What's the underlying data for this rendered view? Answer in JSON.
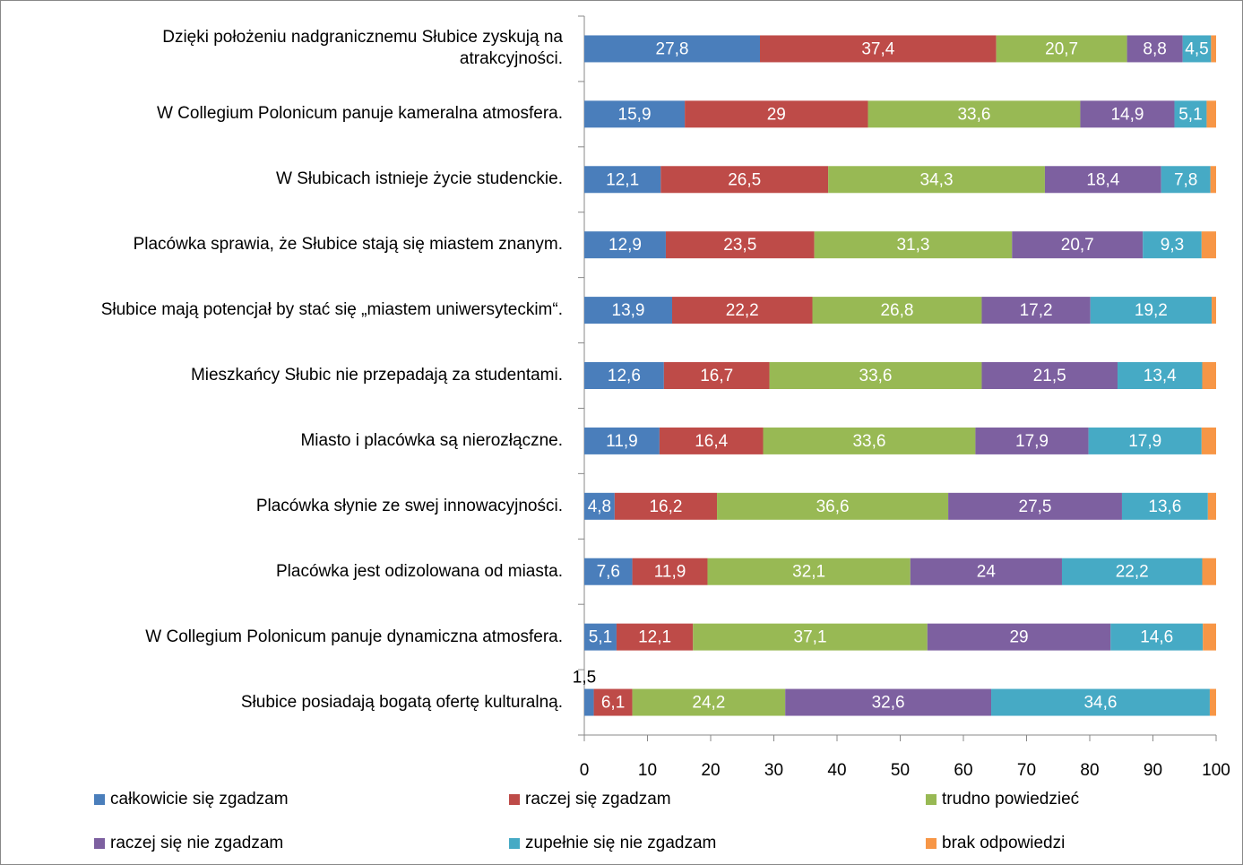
{
  "chart_data": {
    "type": "stacked_barh",
    "categories": [
      "Dzięki położeniu nadgranicznemu Słubice zyskują na atrakcyjności.",
      "W Collegium Polonicum panuje kameralna atmosfera.",
      "W Słubicach istnieje życie studenckie.",
      "Placówka sprawia, że Słubice stają się miastem znanym.",
      "Słubice mają potencjał by stać się „miastem uniwersyteckim“.",
      "Mieszkańcy Słubic nie przepadają za studentami.",
      "Miasto i placówka są nierozłączne.",
      "Placówka słynie ze swej innowacyjności.",
      "Placówka jest odizolowana od miasta.",
      "W Collegium Polonicum panuje dynamiczna atmosfera.",
      "Słubice posiadają bogatą ofertę kulturalną."
    ],
    "series": [
      {
        "name": "całkowicie się zgadzam",
        "color": "#4a7ebb",
        "values": [
          27.8,
          15.9,
          12.1,
          12.9,
          13.9,
          12.6,
          11.9,
          4.8,
          7.6,
          5.1,
          1.5
        ],
        "value_labels": [
          "27,8",
          "15,9",
          "12,1",
          "12,9",
          "13,9",
          "12,6",
          "11,9",
          "4,8",
          "7,6",
          "5,1",
          "1,5"
        ]
      },
      {
        "name": "raczej się zgadzam",
        "color": "#be4b48",
        "values": [
          37.4,
          29,
          26.5,
          23.5,
          22.2,
          16.7,
          16.4,
          16.2,
          11.9,
          12.1,
          6.1
        ],
        "value_labels": [
          "37,4",
          "29",
          "26,5",
          "23,5",
          "22,2",
          "16,7",
          "16,4",
          "16,2",
          "11,9",
          "12,1",
          "6,1"
        ]
      },
      {
        "name": "trudno powiedzieć",
        "color": "#98b954",
        "values": [
          20.7,
          33.6,
          34.3,
          31.3,
          26.8,
          33.6,
          33.6,
          36.6,
          32.1,
          37.1,
          24.2
        ],
        "value_labels": [
          "20,7",
          "33,6",
          "34,3",
          "31,3",
          "26,8",
          "33,6",
          "33,6",
          "36,6",
          "32,1",
          "37,1",
          "24,2"
        ]
      },
      {
        "name": "raczej się nie zgadzam",
        "color": "#7d60a0",
        "values": [
          8.8,
          14.9,
          18.4,
          20.7,
          17.2,
          21.5,
          17.9,
          27.5,
          24,
          29,
          32.6
        ],
        "value_labels": [
          "8,8",
          "14,9",
          "18,4",
          "20,7",
          "17,2",
          "21,5",
          "17,9",
          "27,5",
          "24",
          "29",
          "32,6"
        ]
      },
      {
        "name": "zupełnie się nie zgadzam",
        "color": "#46aac5",
        "values": [
          4.5,
          5.1,
          7.8,
          9.3,
          19.2,
          13.4,
          17.9,
          13.6,
          22.2,
          14.6,
          34.6
        ],
        "value_labels": [
          "4,5",
          "5,1",
          "7,8",
          "9,3",
          "19,2",
          "13,4",
          "17,9",
          "13,6",
          "22,2",
          "14,6",
          "34,6"
        ]
      },
      {
        "name": "brak odpowiedzi",
        "color": "#f79646",
        "values": [
          0.8,
          1.5,
          0.9,
          2.3,
          0.7,
          2.2,
          2.3,
          1.3,
          2.2,
          2.1,
          1.0
        ]
      }
    ],
    "xlim": [
      0,
      100
    ],
    "xticks": [
      0,
      10,
      20,
      30,
      40,
      50,
      60,
      70,
      80,
      90,
      100
    ],
    "grid": false
  }
}
